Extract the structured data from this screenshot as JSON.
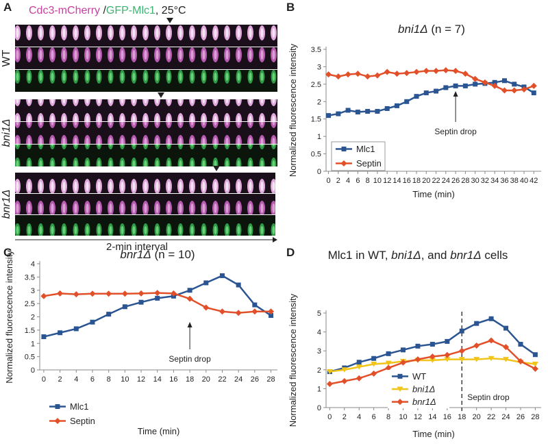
{
  "panel_labels": [
    "A",
    "B",
    "C",
    "D"
  ],
  "micrograph": {
    "title": [
      {
        "text": "Cdc3-mCherry",
        "color": "#c8409e"
      },
      {
        "text": " /",
        "color": "#222222"
      },
      {
        "text": "GFP-Mlc1",
        "color": "#3cb371"
      },
      {
        "text": ", 25°C",
        "color": "#222222"
      }
    ],
    "rows": [
      {
        "label": "WT",
        "italic": false
      },
      {
        "label": "bni1Δ",
        "italic": true
      },
      {
        "label": "bnr1Δ",
        "italic": true
      }
    ],
    "interval_label": "2-min interval"
  },
  "chart_data": [
    {
      "type": "line",
      "title": [
        {
          "text": "bni1Δ",
          "italic": true
        },
        {
          "text": " (n = 7)",
          "italic": false
        }
      ],
      "x_label": "Time (min)",
      "y_label": "Normalized fluorescence intensity",
      "x": [
        0,
        2,
        4,
        6,
        8,
        10,
        12,
        14,
        16,
        18,
        20,
        22,
        24,
        26,
        28,
        30,
        32,
        34,
        36,
        38,
        40,
        42
      ],
      "xlim": [
        -0.5,
        43.5
      ],
      "xticks": [
        0,
        2,
        4,
        6,
        8,
        10,
        12,
        14,
        16,
        18,
        20,
        22,
        24,
        26,
        28,
        30,
        32,
        34,
        36,
        38,
        40,
        42
      ],
      "ylim": [
        0,
        3.5
      ],
      "yticks": [
        0,
        0.5,
        1,
        1.5,
        2,
        2.5,
        3,
        3.5
      ],
      "series": [
        {
          "name": "Mlc1",
          "color": "#2a5592",
          "marker": "square",
          "values": [
            1.6,
            1.65,
            1.75,
            1.7,
            1.72,
            1.72,
            1.8,
            1.88,
            2.0,
            2.15,
            2.25,
            2.3,
            2.4,
            2.45,
            2.45,
            2.5,
            2.52,
            2.55,
            2.6,
            2.5,
            2.42,
            2.25
          ]
        },
        {
          "name": "Septin",
          "color": "#e2502a",
          "marker": "diamond",
          "values": [
            2.78,
            2.72,
            2.78,
            2.8,
            2.72,
            2.75,
            2.85,
            2.8,
            2.82,
            2.85,
            2.88,
            2.88,
            2.9,
            2.88,
            2.8,
            2.65,
            2.55,
            2.45,
            2.32,
            2.32,
            2.35,
            2.45
          ]
        }
      ],
      "annotation": {
        "text": "Septin drop",
        "x": 26,
        "style": "arrow"
      }
    },
    {
      "type": "line",
      "title": [
        {
          "text": "bnr1Δ",
          "italic": true
        },
        {
          "text": " (n = 10)",
          "italic": false
        }
      ],
      "x_label": "Time (min)",
      "y_label": "Normalized fluorescence intensity",
      "x": [
        0,
        2,
        4,
        6,
        8,
        10,
        12,
        14,
        16,
        18,
        20,
        22,
        24,
        26,
        28
      ],
      "xlim": [
        -0.5,
        28.8
      ],
      "xticks": [
        0,
        2,
        4,
        6,
        8,
        10,
        12,
        14,
        16,
        18,
        20,
        22,
        24,
        26,
        28
      ],
      "ylim": [
        0,
        4
      ],
      "yticks": [
        0,
        0.5,
        1,
        1.5,
        2,
        2.5,
        3,
        3.5,
        4
      ],
      "series": [
        {
          "name": "Mlc1",
          "color": "#2a5592",
          "marker": "square",
          "values": [
            1.25,
            1.4,
            1.55,
            1.8,
            2.1,
            2.38,
            2.55,
            2.7,
            2.78,
            3.0,
            3.28,
            3.55,
            3.2,
            2.45,
            2.05
          ]
        },
        {
          "name": "Septin",
          "color": "#e2502a",
          "marker": "diamond",
          "values": [
            2.78,
            2.88,
            2.85,
            2.87,
            2.87,
            2.87,
            2.88,
            2.9,
            2.88,
            2.68,
            2.35,
            2.2,
            2.15,
            2.2,
            2.2
          ]
        }
      ],
      "annotation": {
        "text": "Septin drop",
        "x": 18,
        "style": "arrow"
      }
    },
    {
      "type": "line",
      "title": [
        {
          "text": "Mlc1 in WT, ",
          "italic": false
        },
        {
          "text": "bni1Δ",
          "italic": true
        },
        {
          "text": ", and ",
          "italic": false
        },
        {
          "text": "bnr1Δ",
          "italic": true
        },
        {
          "text": " cells",
          "italic": false
        }
      ],
      "x_label": "Time (min)",
      "y_label": "Normalized fluorescence intensity",
      "x": [
        0,
        2,
        4,
        6,
        8,
        10,
        12,
        14,
        16,
        18,
        20,
        22,
        24,
        26,
        28
      ],
      "xlim": [
        -0.5,
        28.8
      ],
      "xticks": [
        0,
        2,
        4,
        6,
        8,
        10,
        12,
        14,
        16,
        18,
        20,
        22,
        24,
        26,
        28
      ],
      "ylim": [
        0,
        5
      ],
      "yticks": [
        0,
        1,
        2,
        3,
        4,
        5
      ],
      "series": [
        {
          "name": "WT",
          "color": "#2a5592",
          "marker": "square",
          "italic": false,
          "values": [
            1.9,
            2.1,
            2.4,
            2.6,
            2.85,
            3.05,
            3.25,
            3.35,
            3.5,
            4.05,
            4.45,
            4.7,
            4.2,
            3.35,
            2.8
          ]
        },
        {
          "name": "bni1Δ",
          "color": "#f0c419",
          "marker": "triangle",
          "italic": true,
          "values": [
            1.9,
            2.0,
            2.15,
            2.3,
            2.35,
            2.45,
            2.5,
            2.5,
            2.55,
            2.55,
            2.55,
            2.6,
            2.55,
            2.4,
            2.3
          ]
        },
        {
          "name": "bnr1Δ",
          "color": "#e2502a",
          "marker": "diamond",
          "italic": true,
          "values": [
            1.25,
            1.4,
            1.55,
            1.8,
            2.1,
            2.38,
            2.55,
            2.7,
            2.78,
            3.0,
            3.28,
            3.55,
            3.2,
            2.45,
            2.05
          ]
        }
      ],
      "annotation": {
        "text": "Septin drop",
        "x": 18,
        "style": "dashed"
      }
    }
  ]
}
